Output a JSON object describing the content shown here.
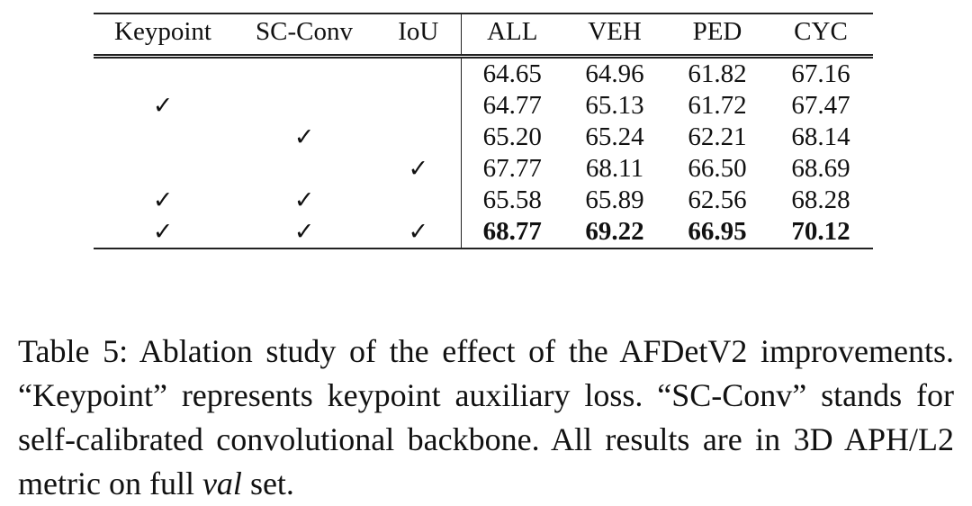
{
  "table": {
    "headers": [
      "Keypoint",
      "SC-Conv",
      "IoU",
      "ALL",
      "VEH",
      "PED",
      "CYC"
    ],
    "check_mark": "✓",
    "rows": [
      {
        "keypoint": "",
        "scconv": "",
        "iou": "",
        "all": "64.65",
        "veh": "64.96",
        "ped": "61.82",
        "cyc": "67.16"
      },
      {
        "keypoint": "✓",
        "scconv": "",
        "iou": "",
        "all": "64.77",
        "veh": "65.13",
        "ped": "61.72",
        "cyc": "67.47"
      },
      {
        "keypoint": "",
        "scconv": "✓",
        "iou": "",
        "all": "65.20",
        "veh": "65.24",
        "ped": "62.21",
        "cyc": "68.14"
      },
      {
        "keypoint": "",
        "scconv": "",
        "iou": "✓",
        "all": "67.77",
        "veh": "68.11",
        "ped": "66.50",
        "cyc": "68.69"
      },
      {
        "keypoint": "✓",
        "scconv": "✓",
        "iou": "",
        "all": "65.58",
        "veh": "65.89",
        "ped": "62.56",
        "cyc": "68.28"
      },
      {
        "keypoint": "✓",
        "scconv": "✓",
        "iou": "✓",
        "all": "68.77",
        "veh": "69.22",
        "ped": "66.95",
        "cyc": "70.12"
      }
    ]
  },
  "caption": {
    "text_before_italic": "Table 5: Ablation study of the effect of the AFDetV2 improvements. “Keypoint” represents keypoint auxiliary loss. “SC-Conv” stands for self-calibrated convolutional backbone. All results are in 3D APH/L2 metric on full ",
    "italic": "val",
    "text_after_italic": " set."
  }
}
